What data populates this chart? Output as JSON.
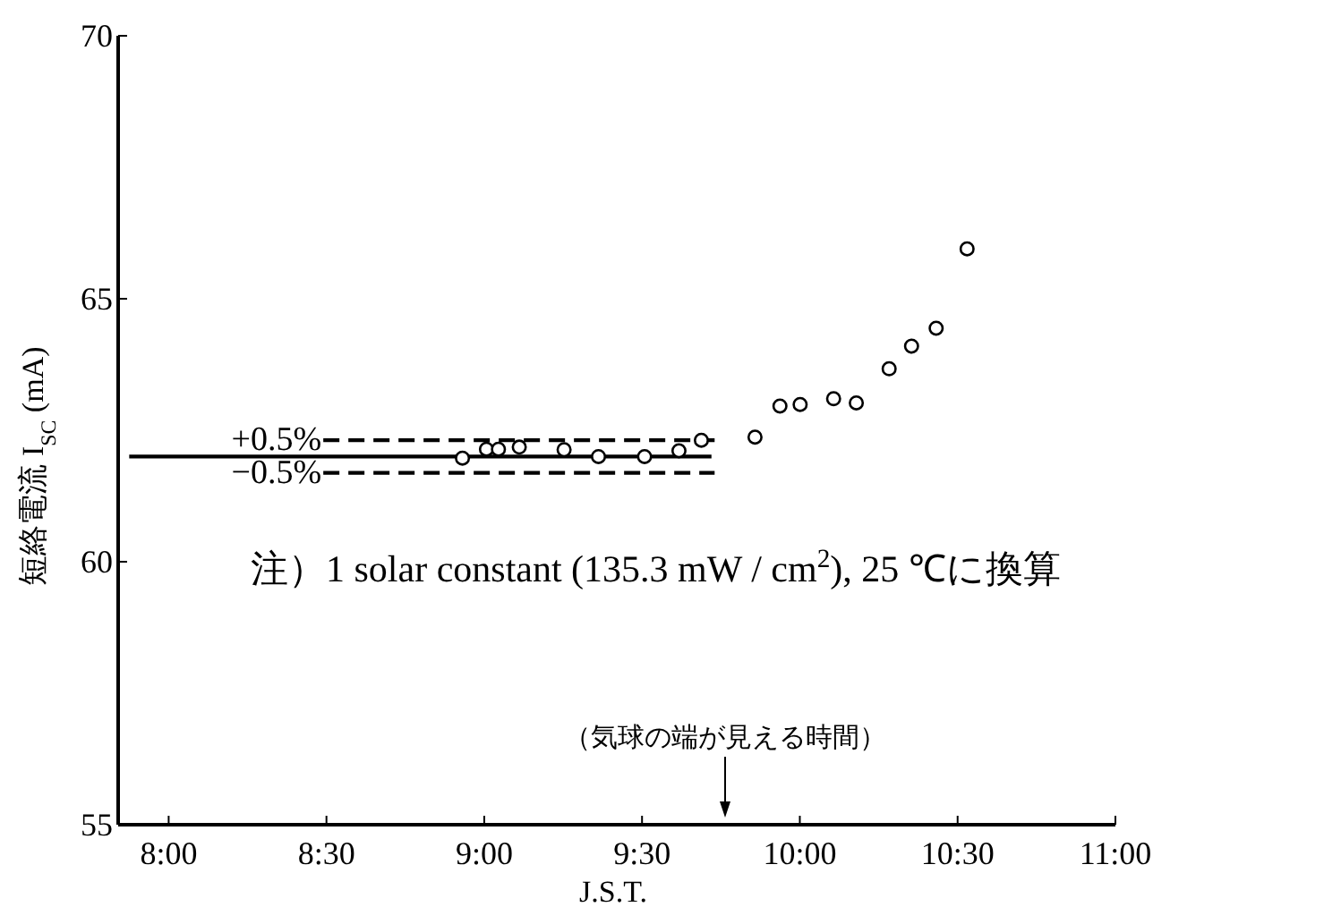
{
  "chart_data": {
    "type": "scatter",
    "xlabel": "J.S.T.",
    "ylabel": "短絡電流 I$_{SC}$ (mA)",
    "xlim": [
      7.84,
      11.0
    ],
    "ylim": [
      55,
      70
    ],
    "xticks": [
      {
        "value": 8,
        "label": "8:00"
      },
      {
        "value": 8.5,
        "label": "8:30"
      },
      {
        "value": 9,
        "label": "9:00"
      },
      {
        "value": 9.5,
        "label": "9:30"
      },
      {
        "value": 10,
        "label": "10:00"
      },
      {
        "value": 10.5,
        "label": "10:30"
      },
      {
        "value": 11,
        "label": "11:00"
      }
    ],
    "yticks": [
      55,
      60,
      65,
      70
    ],
    "marker": "circle",
    "grid": false,
    "series": [
      {
        "type": "line",
        "line_style": "solid",
        "marker": "none",
        "color": "#000000",
        "x": [
          7.875,
          9.72
        ],
        "values": [
          62.0,
          62.0
        ]
      },
      {
        "type": "line",
        "line_style": "dashed",
        "marker": "none",
        "color": "#000000",
        "x": [
          8.49,
          9.73
        ],
        "values": [
          62.31,
          62.31
        ]
      },
      {
        "type": "line",
        "line_style": "dashed",
        "marker": "none",
        "color": "#000000",
        "x": [
          8.49,
          9.73
        ],
        "values": [
          61.69,
          61.69
        ]
      },
      {
        "color": "#000000",
        "x": [
          8.931,
          9.007,
          9.045,
          9.111,
          9.253,
          9.362,
          9.508,
          9.617,
          9.688,
          9.858,
          9.937,
          10.001,
          10.107,
          10.179,
          10.283,
          10.354,
          10.432,
          10.53
        ],
        "values": [
          61.97,
          62.14,
          62.14,
          62.18,
          62.13,
          62.0,
          62.0,
          62.11,
          62.31,
          62.37,
          62.96,
          62.99,
          63.1,
          63.02,
          63.67,
          64.1,
          64.44,
          65.95
        ]
      }
    ],
    "annotations": [
      {
        "text": "+0.5%",
        "x": 8.49,
        "y": 62.31
      },
      {
        "text": "−0.5%",
        "x": 8.49,
        "y": 61.69
      },
      "注）1 solar constant (135.3 mW / cm$^{2}$), 25 ℃に換算",
      "（気球の端が見える時間）"
    ]
  }
}
